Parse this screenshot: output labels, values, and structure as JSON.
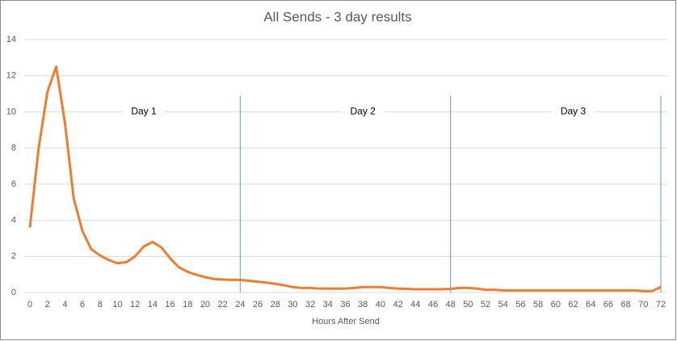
{
  "chart_data": {
    "type": "line",
    "title": "All Sends - 3 day results",
    "x_label": "Hours After Send",
    "x": [
      0,
      1,
      2,
      3,
      4,
      5,
      6,
      7,
      8,
      9,
      10,
      11,
      12,
      13,
      14,
      15,
      16,
      17,
      18,
      19,
      20,
      21,
      22,
      23,
      24,
      25,
      26,
      27,
      28,
      29,
      30,
      31,
      32,
      33,
      34,
      35,
      36,
      37,
      38,
      39,
      40,
      41,
      42,
      43,
      44,
      45,
      46,
      47,
      48,
      49,
      50,
      51,
      52,
      53,
      54,
      55,
      56,
      57,
      58,
      59,
      60,
      61,
      62,
      63,
      64,
      65,
      66,
      67,
      68,
      69,
      70,
      71,
      72
    ],
    "series": [
      {
        "name": "Sends",
        "color": "#ed7d31",
        "values": [
          3.6,
          8,
          11.1,
          12.5,
          9.4,
          5.2,
          3.4,
          2.4,
          2.05,
          1.8,
          1.62,
          1.68,
          2.0,
          2.55,
          2.8,
          2.5,
          1.9,
          1.4,
          1.15,
          0.98,
          0.85,
          0.75,
          0.72,
          0.7,
          0.7,
          0.65,
          0.6,
          0.55,
          0.48,
          0.4,
          0.3,
          0.25,
          0.25,
          0.22,
          0.22,
          0.22,
          0.22,
          0.25,
          0.3,
          0.3,
          0.3,
          0.25,
          0.22,
          0.2,
          0.18,
          0.18,
          0.18,
          0.18,
          0.2,
          0.25,
          0.25,
          0.22,
          0.15,
          0.15,
          0.12,
          0.12,
          0.12,
          0.12,
          0.12,
          0.12,
          0.12,
          0.12,
          0.12,
          0.12,
          0.12,
          0.12,
          0.12,
          0.12,
          0.12,
          0.12,
          0.08,
          0.08,
          0.3
        ]
      }
    ],
    "xlim": [
      0,
      72
    ],
    "xticks": [
      0,
      2,
      4,
      6,
      8,
      10,
      12,
      14,
      16,
      18,
      20,
      22,
      24,
      26,
      28,
      30,
      32,
      34,
      36,
      38,
      40,
      42,
      44,
      46,
      48,
      50,
      52,
      54,
      56,
      58,
      60,
      62,
      64,
      66,
      68,
      70,
      72
    ],
    "ylim": [
      0,
      14
    ],
    "yticks": [
      0,
      2,
      4,
      6,
      8,
      10,
      12,
      14
    ],
    "grid": true,
    "vlines": {
      "x": [
        24,
        48,
        72
      ],
      "top": 10.9,
      "color": "#5b9bd5"
    },
    "annotations": [
      {
        "text": "Day 1",
        "x": 13,
        "y": 10
      },
      {
        "text": "Day 2",
        "x": 38,
        "y": 10
      },
      {
        "text": "Day 3",
        "x": 62,
        "y": 10
      }
    ]
  }
}
